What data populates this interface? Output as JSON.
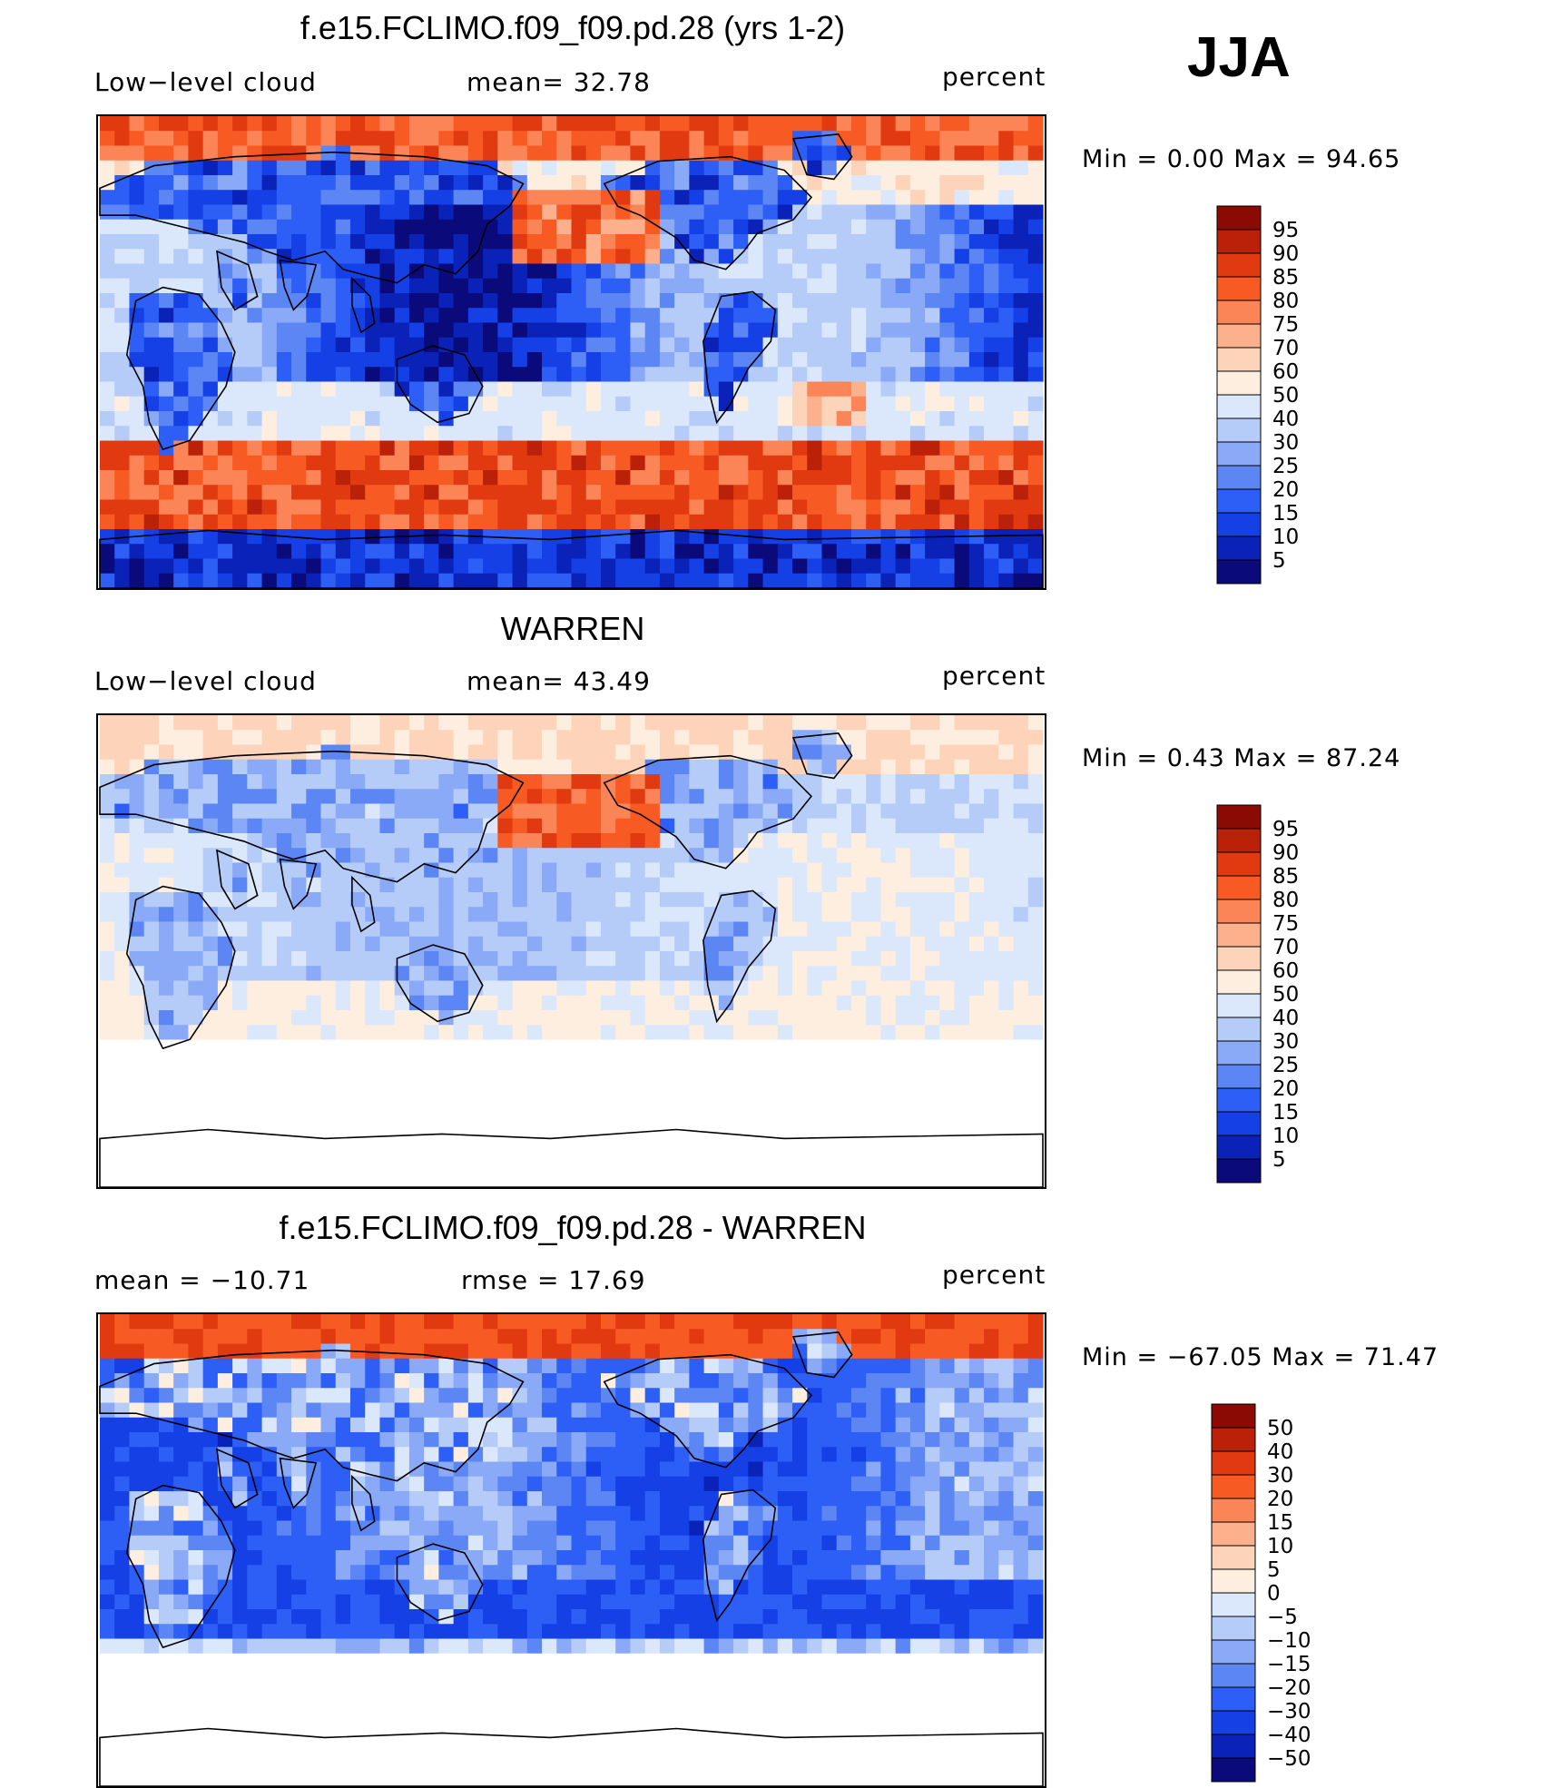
{
  "season": "JJA",
  "colors": {
    "abs_scale": [
      "#0a0a7a",
      "#0a22b8",
      "#1440e6",
      "#2d5ef5",
      "#5d86f5",
      "#8aaaf7",
      "#b6ccf8",
      "#dbe7fb",
      "#fdeee0",
      "#fdd3ba",
      "#fcb18c",
      "#fb8556",
      "#f85a24",
      "#e23a10",
      "#bb2108",
      "#8c0a04"
    ],
    "diff_scale": [
      "#0a0a7a",
      "#0a22b8",
      "#1440e6",
      "#2d5ef5",
      "#5d86f5",
      "#8aaaf7",
      "#b6ccf8",
      "#dbe7fb",
      "#fdeee0",
      "#fdd3ba",
      "#fcb18c",
      "#fb8556",
      "#f85a24",
      "#e23a10",
      "#bb2108",
      "#8c0a04"
    ],
    "land_outline": "#000000",
    "missing": "#ffffff"
  },
  "chart_data": [
    {
      "type": "heatmap",
      "title": "f.e15.FCLIMO.f09_f09.pd.28 (yrs 1-2)",
      "left_label": "Low−level cloud",
      "center_label": "mean=   32.78",
      "right_label": "percent",
      "mean": 32.78,
      "minmax_text": "Min =    0.00 Max =   94.65",
      "min": 0.0,
      "max": 94.65,
      "colorbar_labels": [
        "95",
        "90",
        "85",
        "80",
        "75",
        "70",
        "60",
        "50",
        "40",
        "30",
        "25",
        "20",
        "15",
        "10",
        "5"
      ],
      "colorbar_levels": [
        5,
        10,
        15,
        20,
        25,
        30,
        40,
        50,
        60,
        70,
        75,
        80,
        85,
        90,
        95
      ]
    },
    {
      "type": "heatmap",
      "title": "WARREN",
      "left_label": "Low−level cloud",
      "center_label": "mean=   43.49",
      "right_label": "percent",
      "mean": 43.49,
      "minmax_text": "Min =    0.43 Max =   87.24",
      "min": 0.43,
      "max": 87.24,
      "colorbar_labels": [
        "95",
        "90",
        "85",
        "80",
        "75",
        "70",
        "60",
        "50",
        "40",
        "30",
        "25",
        "20",
        "15",
        "10",
        "5"
      ],
      "colorbar_levels": [
        5,
        10,
        15,
        20,
        25,
        30,
        40,
        50,
        60,
        70,
        75,
        80,
        85,
        90,
        95
      ]
    },
    {
      "type": "heatmap",
      "title": "f.e15.FCLIMO.f09_f09.pd.28 - WARREN",
      "left_label": "mean = −10.71",
      "center_label": "rmse =   17.69",
      "right_label": "percent",
      "mean": -10.71,
      "rmse": 17.69,
      "minmax_text": "Min = −67.05 Max =   71.47",
      "min": -67.05,
      "max": 71.47,
      "colorbar_labels": [
        "50",
        "40",
        "30",
        "20",
        "15",
        "10",
        "5",
        "0",
        "−5",
        "−10",
        "−15",
        "−20",
        "−30",
        "−40",
        "−50"
      ],
      "colorbar_levels": [
        -50,
        -40,
        -30,
        -20,
        -15,
        -10,
        -5,
        0,
        5,
        10,
        15,
        20,
        30,
        40,
        50
      ]
    }
  ]
}
